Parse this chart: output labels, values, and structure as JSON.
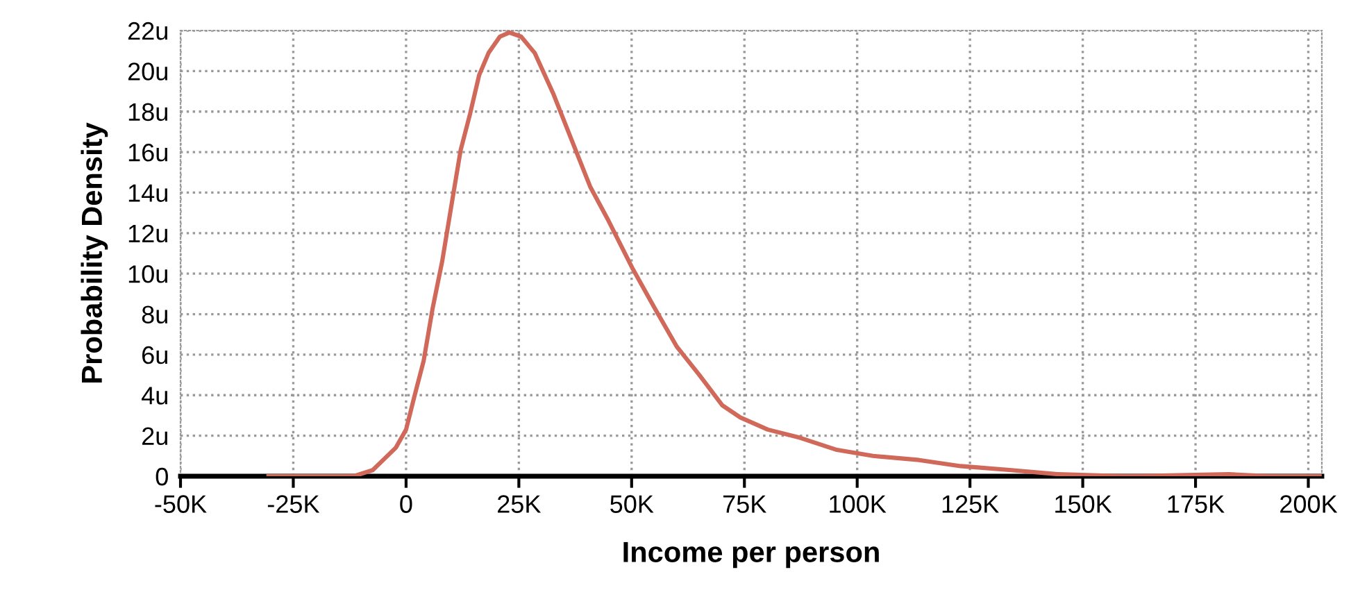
{
  "chart_data": {
    "type": "line",
    "xlabel": "Income per person",
    "ylabel": "Probability Density",
    "series": [
      {
        "color": "#d0695a",
        "x": [
          -30500,
          -11600,
          -7400,
          -2300,
          0,
          1800,
          3900,
          5900,
          8000,
          10000,
          12100,
          14200,
          16200,
          18300,
          20800,
          22900,
          25500,
          28500,
          32600,
          36700,
          40800,
          44900,
          50100,
          55100,
          60000,
          65000,
          70100,
          74100,
          80200,
          87300,
          95500,
          103500,
          113700,
          122900,
          134200,
          144400,
          159800,
          182400,
          191600,
          202500
        ],
        "values": [
          0,
          0,
          0.3,
          1.4,
          2.3,
          3.9,
          5.7,
          8.3,
          10.6,
          13.3,
          16.1,
          17.9,
          19.8,
          20.9,
          21.7,
          21.9,
          21.7,
          20.9,
          18.9,
          16.6,
          14.3,
          12.6,
          10.3,
          8.3,
          6.4,
          5.0,
          3.5,
          2.9,
          2.3,
          1.9,
          1.3,
          1.0,
          0.8,
          0.5,
          0.3,
          0.1,
          0,
          0.1,
          0,
          0
        ]
      }
    ],
    "xlim": [
      -50000,
      203000
    ],
    "ylim": [
      0,
      22
    ],
    "xticks": [
      {
        "value": -50000,
        "label": "-50K"
      },
      {
        "value": -25000,
        "label": "-25K"
      },
      {
        "value": 0,
        "label": "0"
      },
      {
        "value": 25000,
        "label": "25K"
      },
      {
        "value": 50000,
        "label": "50K"
      },
      {
        "value": 75000,
        "label": "75K"
      },
      {
        "value": 100000,
        "label": "100K"
      },
      {
        "value": 125000,
        "label": "125K"
      },
      {
        "value": 150000,
        "label": "150K"
      },
      {
        "value": 175000,
        "label": "175K"
      },
      {
        "value": 200000,
        "label": "200K"
      }
    ],
    "yticks": [
      0,
      {
        "value": 2,
        "label": "2u"
      },
      {
        "value": 4,
        "label": "4u"
      },
      {
        "value": 6,
        "label": "6u"
      },
      {
        "value": 8,
        "label": "8u"
      },
      {
        "value": 10,
        "label": "10u"
      },
      {
        "value": 12,
        "label": "12u"
      },
      {
        "value": 14,
        "label": "14u"
      },
      {
        "value": 16,
        "label": "16u"
      },
      {
        "value": 18,
        "label": "18u"
      },
      {
        "value": 20,
        "label": "20u"
      },
      {
        "value": 22,
        "label": "22u"
      }
    ],
    "grid": true,
    "line_style": "solid"
  }
}
